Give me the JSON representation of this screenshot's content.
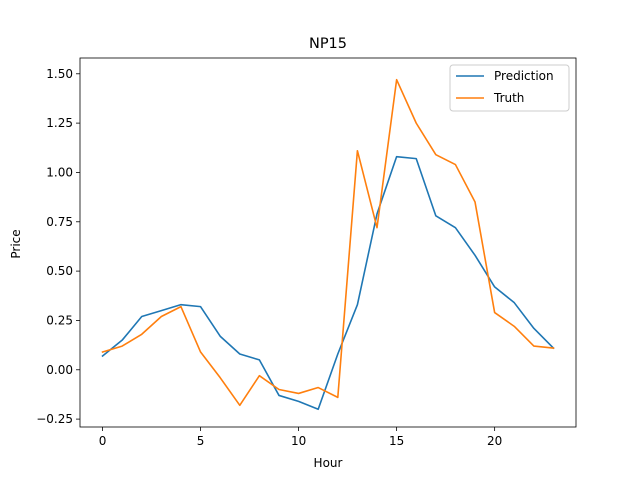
{
  "chart_data": {
    "type": "line",
    "title": "NP15",
    "xlabel": "Hour",
    "ylabel": "Price",
    "xlim": [
      -1.15,
      24.15
    ],
    "ylim": [
      -0.29,
      1.58
    ],
    "x_ticks": [
      0,
      5,
      10,
      15,
      20
    ],
    "x_tick_labels": [
      "0",
      "5",
      "10",
      "15",
      "20"
    ],
    "y_ticks": [
      -0.25,
      0.0,
      0.25,
      0.5,
      0.75,
      1.0,
      1.25,
      1.5
    ],
    "y_tick_labels": [
      "−0.25",
      "0.00",
      "0.25",
      "0.50",
      "0.75",
      "1.00",
      "1.25",
      "1.50"
    ],
    "grid": false,
    "legend_position": "top-right",
    "x": [
      0,
      1,
      2,
      3,
      4,
      5,
      6,
      7,
      8,
      9,
      10,
      11,
      12,
      13,
      14,
      15,
      16,
      17,
      18,
      19,
      20,
      21,
      22,
      23
    ],
    "series": [
      {
        "name": "Prediction",
        "color": "#1f77b4",
        "values": [
          0.07,
          0.15,
          0.27,
          0.3,
          0.33,
          0.32,
          0.17,
          0.08,
          0.05,
          -0.13,
          -0.16,
          -0.2,
          0.08,
          0.33,
          0.79,
          1.08,
          1.07,
          0.78,
          0.72,
          0.58,
          0.42,
          0.34,
          0.21,
          0.11
        ]
      },
      {
        "name": "Truth",
        "color": "#ff7f0e",
        "values": [
          0.09,
          0.12,
          0.18,
          0.27,
          0.32,
          0.09,
          -0.04,
          -0.18,
          -0.03,
          -0.1,
          -0.12,
          -0.09,
          -0.14,
          1.11,
          0.72,
          1.47,
          1.25,
          1.09,
          1.04,
          0.85,
          0.29,
          0.22,
          0.12,
          0.11
        ]
      }
    ]
  }
}
